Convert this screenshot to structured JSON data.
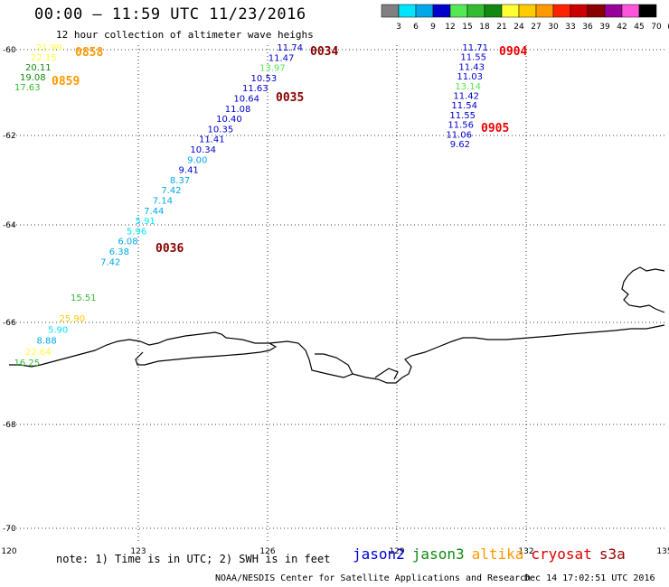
{
  "title": "00:00 – 11:59 UTC 11/23/2016",
  "subtitle": "12 hour collection of altimeter wave heighs",
  "color_scale": {
    "labels": [
      "3",
      "6",
      "9",
      "12",
      "15",
      "18",
      "21",
      "24",
      "27",
      "30",
      "33",
      "36",
      "39",
      "42",
      "45",
      "70",
      "(ft)"
    ],
    "colors": [
      "#808080",
      "#00e5ff",
      "#00a8e8",
      "#0000cc",
      "#55e855",
      "#33bb33",
      "#118811",
      "#ffff33",
      "#ffcc00",
      "#ff9900",
      "#ff2200",
      "#cc0000",
      "#880000",
      "#990099",
      "#ff55dd",
      "#000000"
    ]
  },
  "map": {
    "lat_labels": [
      "-60",
      "-62",
      "-64",
      "-66",
      "-68",
      "-70"
    ],
    "lon_labels": [
      "120",
      "123",
      "126",
      "129",
      "132",
      "135"
    ]
  },
  "tracks": [
    {
      "points": [
        {
          "t": "21.99",
          "c": "#ffff33"
        },
        {
          "t": "22.15",
          "c": "#ffff33"
        },
        {
          "t": "20.11",
          "c": "#118811"
        },
        {
          "t": "19.08",
          "c": "#118811"
        },
        {
          "t": "17.63",
          "c": "#33bb33"
        }
      ]
    },
    {
      "points": [
        {
          "t": "11.74",
          "c": "#0000cc"
        },
        {
          "t": "11.47",
          "c": "#0000cc"
        },
        {
          "t": "13.97",
          "c": "#55e855"
        },
        {
          "t": "10.53",
          "c": "#0000cc"
        },
        {
          "t": "11.63",
          "c": "#0000cc"
        },
        {
          "t": "10.64",
          "c": "#0000cc"
        },
        {
          "t": "11.08",
          "c": "#0000cc"
        },
        {
          "t": "10.40",
          "c": "#0000cc"
        },
        {
          "t": "10.35",
          "c": "#0000cc"
        },
        {
          "t": "11.41",
          "c": "#0000cc"
        },
        {
          "t": "10.34",
          "c": "#0000cc"
        },
        {
          "t": "9.00",
          "c": "#00a8e8"
        },
        {
          "t": "9.41",
          "c": "#0000cc"
        },
        {
          "t": "8.37",
          "c": "#00a8e8"
        },
        {
          "t": "7.42",
          "c": "#00a8e8"
        },
        {
          "t": "7.14",
          "c": "#00a8e8"
        },
        {
          "t": "7.44",
          "c": "#00a8e8"
        },
        {
          "t": "5.91",
          "c": "#00e5ff"
        },
        {
          "t": "5.96",
          "c": "#00e5ff"
        },
        {
          "t": "6.08",
          "c": "#00a8e8"
        },
        {
          "t": "6.38",
          "c": "#00a8e8"
        },
        {
          "t": "7.42",
          "c": "#00a8e8"
        }
      ]
    },
    {
      "points": [
        {
          "t": "11.71",
          "c": "#0000cc"
        },
        {
          "t": "11.55",
          "c": "#0000cc"
        },
        {
          "t": "11.43",
          "c": "#0000cc"
        },
        {
          "t": "11.03",
          "c": "#0000cc"
        },
        {
          "t": "13.14",
          "c": "#55e855"
        },
        {
          "t": "11.42",
          "c": "#0000cc"
        },
        {
          "t": "11.54",
          "c": "#0000cc"
        },
        {
          "t": "11.55",
          "c": "#0000cc"
        },
        {
          "t": "11.56",
          "c": "#0000cc"
        },
        {
          "t": "11.06",
          "c": "#0000cc"
        },
        {
          "t": "9.62",
          "c": "#0000cc"
        }
      ]
    },
    {
      "points": [
        {
          "t": "15.51",
          "c": "#33bb33"
        },
        {
          "t": "25.90",
          "c": "#ffcc00"
        },
        {
          "t": "5.90",
          "c": "#00e5ff"
        },
        {
          "t": "8.88",
          "c": "#00a8e8"
        },
        {
          "t": "22.64",
          "c": "#ffff33"
        },
        {
          "t": "16.25",
          "c": "#33bb33"
        }
      ]
    }
  ],
  "time_labels": [
    {
      "t": "0858",
      "c": "#ff9900"
    },
    {
      "t": "0859",
      "c": "#ff9900"
    },
    {
      "t": "0034",
      "c": "#880000"
    },
    {
      "t": "0035",
      "c": "#880000"
    },
    {
      "t": "0036",
      "c": "#880000"
    },
    {
      "t": "0904",
      "c": "#ee0000"
    },
    {
      "t": "0905",
      "c": "#ee0000"
    }
  ],
  "note": "note: 1) Time is in UTC; 2) SWH is in feet",
  "legend": [
    {
      "name": "jason2",
      "color": "#0000dd"
    },
    {
      "name": "jason3",
      "color": "#118811"
    },
    {
      "name": "altika",
      "color": "#ff9900"
    },
    {
      "name": "cryosat",
      "color": "#dd0000"
    },
    {
      "name": "s3a",
      "color": "#990000"
    }
  ],
  "credit": "NOAA/NESDIS Center for Satellite Applications and Research",
  "timestamp": "Dec 14 17:02:51 UTC 2016"
}
